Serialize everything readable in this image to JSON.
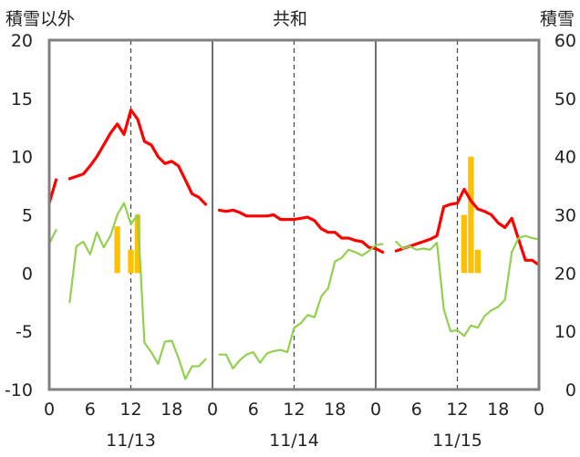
{
  "chart_data": {
    "type": "line",
    "title": "共和",
    "y_left_label": "積雪以外",
    "y_right_label": "積雪",
    "y_left_range": [
      -10,
      20
    ],
    "y_left_ticks": [
      "20",
      "15",
      "10",
      "5",
      "0",
      "-5",
      "-10"
    ],
    "y_right_range": [
      0,
      60
    ],
    "y_right_ticks": [
      "60",
      "50",
      "40",
      "30",
      "20",
      "10",
      "0"
    ],
    "x_range_hours": [
      0,
      72
    ],
    "x_tick_labels": [
      "0",
      "6",
      "12",
      "18",
      "0",
      "6",
      "12",
      "18",
      "0",
      "6",
      "12",
      "18",
      "0"
    ],
    "date_labels": [
      "11/13",
      "11/14",
      "11/15"
    ],
    "grid": "dashed at 12h, solid at day boundaries",
    "colors": {
      "temperature": "#ff0000",
      "dewpoint": "#92d050",
      "precipitation": "#ffc000",
      "snow_depth": "#7030a0",
      "axes": "#808080"
    },
    "series": [
      {
        "key": "temperature",
        "style": "line",
        "points": [
          [
            0,
            6
          ],
          [
            1,
            8
          ],
          [
            null,
            null
          ],
          [
            3,
            8.1
          ],
          [
            4,
            8.3
          ],
          [
            5,
            8.5
          ],
          [
            6,
            9.2
          ],
          [
            7,
            10
          ],
          [
            8,
            11
          ],
          [
            9,
            12
          ],
          [
            10,
            12.8
          ],
          [
            11,
            11.9
          ],
          [
            12,
            14
          ],
          [
            13,
            13.2
          ],
          [
            14,
            11.3
          ],
          [
            15,
            11
          ],
          [
            16,
            10
          ],
          [
            17,
            9.4
          ],
          [
            18,
            9.6
          ],
          [
            19,
            9.2
          ],
          [
            20,
            8
          ],
          [
            21,
            6.8
          ],
          [
            22,
            6.5
          ],
          [
            23,
            5.9
          ],
          [
            null,
            null
          ],
          [
            25,
            5.4
          ],
          [
            26,
            5.3
          ],
          [
            27,
            5.4
          ],
          [
            28,
            5.2
          ],
          [
            29,
            4.9
          ],
          [
            30,
            4.9
          ],
          [
            31,
            4.9
          ],
          [
            32,
            4.9
          ],
          [
            33,
            5
          ],
          [
            34,
            4.6
          ],
          [
            35,
            4.6
          ],
          [
            36,
            4.6
          ],
          [
            37,
            4.7
          ],
          [
            38,
            4.8
          ],
          [
            39,
            4.5
          ],
          [
            40,
            3.8
          ],
          [
            41,
            3.5
          ],
          [
            42,
            3.5
          ],
          [
            43,
            3
          ],
          [
            44,
            3
          ],
          [
            45,
            2.8
          ],
          [
            46,
            2.7
          ],
          [
            47,
            2.2
          ],
          [
            48,
            2.1
          ],
          [
            49,
            1.8
          ],
          [
            null,
            null
          ],
          [
            51,
            1.9
          ],
          [
            52,
            2.1
          ],
          [
            53,
            2.3
          ],
          [
            54,
            2.5
          ],
          [
            55,
            2.7
          ],
          [
            56,
            2.9
          ],
          [
            57,
            3.2
          ],
          [
            58,
            5.7
          ],
          [
            59,
            5.9
          ],
          [
            60,
            6
          ],
          [
            61,
            7.2
          ],
          [
            62,
            6.2
          ],
          [
            63,
            5.5
          ],
          [
            64,
            5.3
          ],
          [
            65,
            5
          ],
          [
            66,
            4.3
          ],
          [
            67,
            3.9
          ],
          [
            68,
            4.7
          ],
          [
            69,
            2.9
          ],
          [
            70,
            1.1
          ],
          [
            71,
            1.1
          ],
          [
            72,
            0.7
          ]
        ]
      },
      {
        "key": "dewpoint",
        "style": "line",
        "points": [
          [
            0,
            2.5
          ],
          [
            1,
            3.7
          ],
          [
            null,
            null
          ],
          [
            3,
            -2.5
          ],
          [
            4,
            2.3
          ],
          [
            5,
            2.7
          ],
          [
            6,
            1.6
          ],
          [
            7,
            3.5
          ],
          [
            8,
            2.2
          ],
          [
            9,
            3.2
          ],
          [
            10,
            5
          ],
          [
            11,
            6
          ],
          [
            12,
            4.2
          ],
          [
            13,
            5
          ],
          [
            14,
            -6
          ],
          [
            15,
            -6.8
          ],
          [
            16,
            -7.8
          ],
          [
            17,
            -5.9
          ],
          [
            18,
            -5.8
          ],
          [
            19,
            -7.3
          ],
          [
            20,
            -9.1
          ],
          [
            21,
            -8
          ],
          [
            22,
            -8
          ],
          [
            23,
            -7.4
          ],
          [
            null,
            null
          ],
          [
            25,
            -7
          ],
          [
            26,
            -7
          ],
          [
            27,
            -8.2
          ],
          [
            28,
            -7.5
          ],
          [
            29,
            -7
          ],
          [
            30,
            -6.8
          ],
          [
            31,
            -7.7
          ],
          [
            32,
            -6.9
          ],
          [
            33,
            -6.7
          ],
          [
            34,
            -6.6
          ],
          [
            35,
            -6.8
          ],
          [
            36,
            -4.7
          ],
          [
            37,
            -4.3
          ],
          [
            38,
            -3.6
          ],
          [
            39,
            -3.8
          ],
          [
            40,
            -2
          ],
          [
            41,
            -1.3
          ],
          [
            42,
            1
          ],
          [
            43,
            1.3
          ],
          [
            44,
            2
          ],
          [
            45,
            1.8
          ],
          [
            46,
            1.5
          ],
          [
            47,
            1.9
          ],
          [
            48,
            2.4
          ],
          [
            49,
            2.5
          ],
          [
            null,
            null
          ],
          [
            51,
            2.7
          ],
          [
            52,
            2.1
          ],
          [
            53,
            2.3
          ],
          [
            54,
            2
          ],
          [
            55,
            2.1
          ],
          [
            56,
            2
          ],
          [
            57,
            2.6
          ],
          [
            58,
            -3.1
          ],
          [
            59,
            -5
          ],
          [
            60,
            -4.9
          ],
          [
            61,
            -5.4
          ],
          [
            62,
            -4.5
          ],
          [
            63,
            -4.7
          ],
          [
            64,
            -3.7
          ],
          [
            65,
            -3.2
          ],
          [
            66,
            -2.9
          ],
          [
            67,
            -2.3
          ],
          [
            68,
            1.8
          ],
          [
            69,
            3
          ],
          [
            70,
            3.2
          ],
          [
            71,
            3
          ],
          [
            72,
            2.9
          ]
        ]
      },
      {
        "key": "precipitation",
        "style": "bar",
        "axis": "left",
        "points": [
          [
            10,
            4
          ],
          [
            12,
            2
          ],
          [
            13,
            5
          ],
          [
            61,
            5
          ],
          [
            62,
            10
          ],
          [
            63,
            2
          ]
        ]
      },
      {
        "key": "snow_depth",
        "style": "line",
        "axis": "right",
        "points": [
          [
            0,
            0
          ],
          [
            72,
            0
          ]
        ]
      }
    ]
  }
}
